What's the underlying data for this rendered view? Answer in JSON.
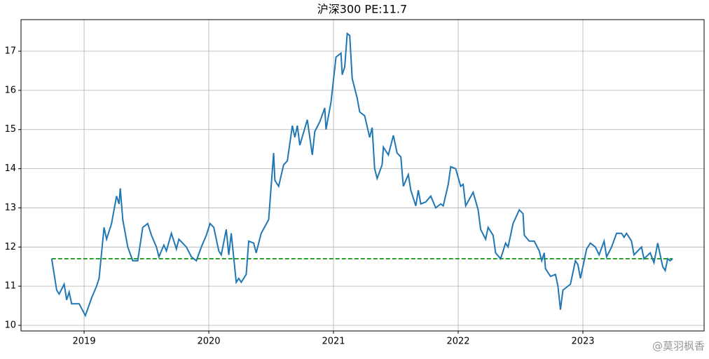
{
  "chart_data": {
    "type": "line",
    "title": "沪深300   PE:11.7",
    "x": [
      2018.74,
      2018.78,
      2018.8,
      2018.84,
      2018.86,
      2018.88,
      2018.9,
      2018.96,
      2019.01,
      2019.06,
      2019.1,
      2019.12,
      2019.16,
      2019.18,
      2019.22,
      2019.26,
      2019.28,
      2019.29,
      2019.31,
      2019.35,
      2019.39,
      2019.43,
      2019.47,
      2019.51,
      2019.54,
      2019.58,
      2019.6,
      2019.64,
      2019.66,
      2019.7,
      2019.74,
      2019.76,
      2019.82,
      2019.86,
      2019.9,
      2019.94,
      2019.98,
      2020.01,
      2020.04,
      2020.08,
      2020.1,
      2020.14,
      2020.16,
      2020.18,
      2020.22,
      2020.24,
      2020.26,
      2020.3,
      2020.32,
      2020.36,
      2020.38,
      2020.42,
      2020.48,
      2020.52,
      2020.53,
      2020.56,
      2020.6,
      2020.63,
      2020.67,
      2020.69,
      2020.71,
      2020.73,
      2020.79,
      2020.83,
      2020.85,
      2020.89,
      2020.93,
      2020.94,
      2020.98,
      2021.02,
      2021.06,
      2021.07,
      2021.09,
      2021.11,
      2021.13,
      2021.15,
      2021.19,
      2021.21,
      2021.25,
      2021.29,
      2021.31,
      2021.33,
      2021.35,
      2021.39,
      2021.4,
      2021.44,
      2021.48,
      2021.51,
      2021.54,
      2021.56,
      2021.6,
      2021.62,
      2021.66,
      2021.68,
      2021.7,
      2021.74,
      2021.78,
      2021.82,
      2021.86,
      2021.88,
      2021.92,
      2021.94,
      2021.98,
      2022.02,
      2022.04,
      2022.06,
      2022.12,
      2022.16,
      2022.18,
      2022.22,
      2022.24,
      2022.28,
      2022.3,
      2022.34,
      2022.38,
      2022.4,
      2022.44,
      2022.49,
      2022.52,
      2022.53,
      2022.57,
      2022.61,
      2022.65,
      2022.67,
      2022.69,
      2022.7,
      2022.74,
      2022.78,
      2022.8,
      2022.82,
      2022.84,
      2022.9,
      2022.94,
      2022.96,
      2022.98,
      2022.99,
      2023.03,
      2023.06,
      2023.1,
      2023.13,
      2023.17,
      2023.19,
      2023.23,
      2023.27,
      2023.31,
      2023.33,
      2023.35,
      2023.39,
      2023.41,
      2023.47,
      2023.49,
      2023.54,
      2023.57,
      2023.6,
      2023.64,
      2023.66,
      2023.68,
      2023.7,
      2023.72
    ],
    "series": [
      {
        "color": "#1f77b4",
        "values": [
          11.7,
          10.9,
          10.8,
          11.05,
          10.65,
          10.85,
          10.55,
          10.55,
          10.25,
          10.7,
          11.0,
          11.2,
          12.5,
          12.2,
          12.6,
          13.3,
          13.1,
          13.5,
          12.7,
          12.0,
          11.65,
          11.65,
          12.5,
          12.6,
          12.3,
          12.0,
          11.75,
          12.05,
          11.9,
          12.35,
          11.95,
          12.2,
          12.0,
          11.75,
          11.65,
          12.0,
          12.3,
          12.6,
          12.5,
          11.9,
          11.8,
          12.45,
          11.8,
          12.35,
          11.1,
          11.2,
          11.1,
          11.3,
          12.15,
          12.1,
          11.85,
          12.35,
          12.7,
          14.4,
          13.7,
          13.55,
          14.1,
          14.2,
          15.1,
          14.8,
          15.1,
          14.6,
          15.25,
          14.35,
          14.95,
          15.2,
          15.55,
          15.0,
          15.7,
          16.85,
          16.95,
          16.4,
          16.6,
          17.45,
          17.4,
          16.3,
          15.8,
          15.45,
          15.35,
          14.8,
          15.05,
          14.0,
          13.75,
          14.1,
          14.55,
          14.35,
          14.85,
          14.4,
          14.3,
          13.55,
          13.85,
          13.45,
          13.05,
          13.45,
          13.1,
          13.15,
          13.3,
          13.0,
          13.1,
          13.05,
          13.6,
          14.05,
          14.0,
          13.55,
          13.6,
          13.05,
          13.4,
          12.95,
          12.45,
          12.2,
          12.5,
          12.3,
          11.85,
          11.7,
          12.1,
          12.0,
          12.6,
          12.95,
          12.85,
          12.3,
          12.15,
          12.15,
          11.9,
          11.65,
          11.85,
          11.45,
          11.25,
          11.3,
          11.0,
          10.4,
          10.9,
          11.05,
          11.65,
          11.55,
          11.2,
          11.35,
          11.95,
          12.1,
          12.0,
          11.8,
          12.15,
          11.75,
          12.0,
          12.35,
          12.35,
          12.25,
          12.35,
          12.15,
          11.8,
          12.0,
          11.7,
          11.85,
          11.6,
          12.1,
          11.5,
          11.4,
          11.7,
          11.65,
          11.7
        ]
      }
    ],
    "hline": {
      "value": 11.7,
      "from": 2018.74,
      "to": 2023.72,
      "color": "#2ca02c",
      "dashed": true
    },
    "xlim": [
      2018.494,
      2023.972
    ],
    "xticks": [
      2019,
      2020,
      2021,
      2022,
      2023
    ],
    "ylim": [
      9.857,
      17.806
    ],
    "yticks": [
      10,
      11,
      12,
      13,
      14,
      15,
      16,
      17
    ],
    "grid": true
  },
  "watermark": "@莫羽枫香"
}
